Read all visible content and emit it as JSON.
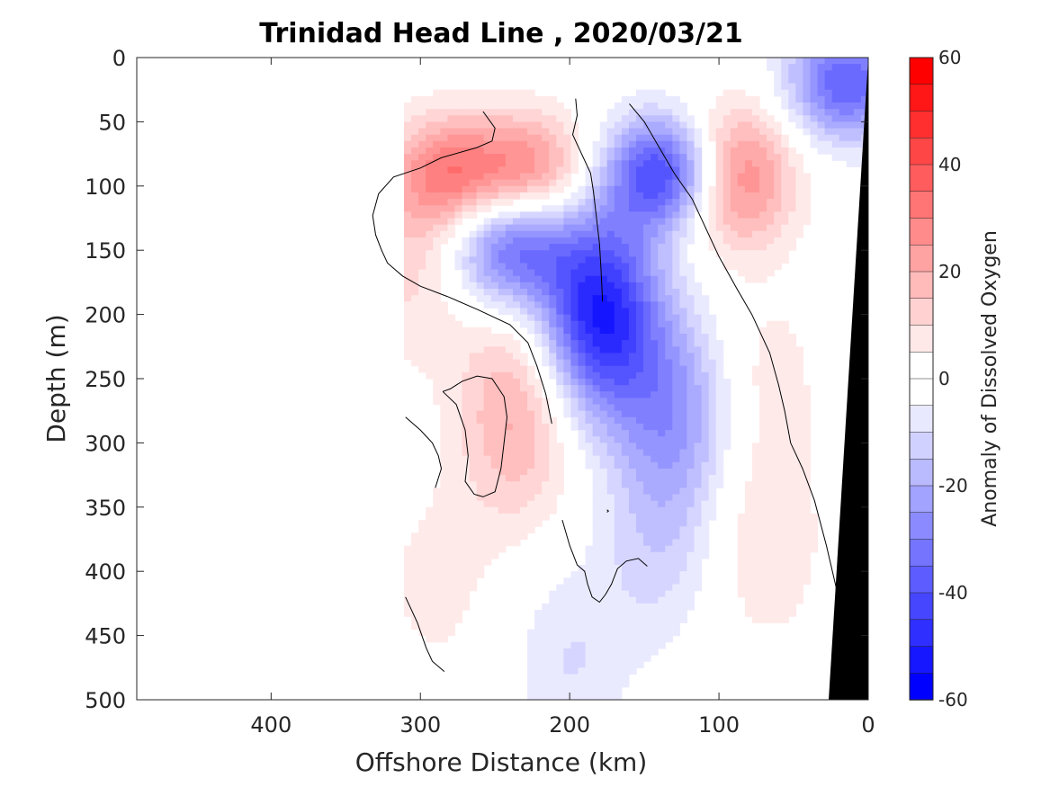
{
  "chart_data": {
    "type": "heatmap",
    "title": "Trinidad Head Line , 2020/03/21",
    "xlabel": "Offshore Distance (km)",
    "ylabel": "Depth (m)",
    "xlim": [
      490,
      0
    ],
    "ylim": [
      0,
      500
    ],
    "x_direction": "reversed",
    "y_direction": "depth increasing downward",
    "xticks": [
      400,
      300,
      200,
      100,
      0
    ],
    "yticks": [
      0,
      50,
      100,
      150,
      200,
      250,
      300,
      350,
      400,
      450,
      500
    ],
    "colorbar": {
      "label": "Anomaly of Dissolved Oxygen",
      "range": [
        -60,
        60
      ],
      "ticks": [
        60,
        40,
        20,
        0,
        -20,
        -40,
        -60
      ],
      "level_step": 5,
      "colormap": "blue-white-red",
      "positive_color": "#ff0000",
      "negative_color": "#0000ff"
    },
    "data_extent_km": [
      0,
      311
    ],
    "bathymetry_color": "#000000",
    "zero_contour": "black line",
    "anomaly_features": [
      {
        "sign": "positive",
        "x_km": 280,
        "depth_m": 90,
        "value": 30
      },
      {
        "sign": "positive",
        "x_km": 225,
        "depth_m": 88,
        "value": 28
      },
      {
        "sign": "positive",
        "x_km": 305,
        "depth_m": 160,
        "value": 12
      },
      {
        "sign": "positive",
        "x_km": 90,
        "depth_m": 72,
        "value": 22
      },
      {
        "sign": "positive",
        "x_km": 92,
        "depth_m": 112,
        "value": 22
      },
      {
        "sign": "positive",
        "x_km": 235,
        "depth_m": 255,
        "value": 12
      },
      {
        "sign": "positive",
        "x_km": 235,
        "depth_m": 300,
        "value": 12
      },
      {
        "sign": "positive",
        "x_km": 70,
        "depth_m": 250,
        "value": 8
      },
      {
        "sign": "positive",
        "x_km": 70,
        "depth_m": 380,
        "value": 10
      },
      {
        "sign": "positive",
        "x_km": 290,
        "depth_m": 410,
        "value": 7
      },
      {
        "sign": "negative",
        "x_km": 135,
        "depth_m": 90,
        "value": -50
      },
      {
        "sign": "negative",
        "x_km": 180,
        "depth_m": 200,
        "value": -55
      },
      {
        "sign": "negative",
        "x_km": 240,
        "depth_m": 148,
        "value": -38
      },
      {
        "sign": "negative",
        "x_km": 130,
        "depth_m": 275,
        "value": -25
      },
      {
        "sign": "negative",
        "x_km": 15,
        "depth_m": 20,
        "value": -40
      },
      {
        "sign": "negative",
        "x_km": 140,
        "depth_m": 380,
        "value": -12
      },
      {
        "sign": "negative",
        "x_km": 200,
        "depth_m": 470,
        "value": -10
      }
    ]
  }
}
